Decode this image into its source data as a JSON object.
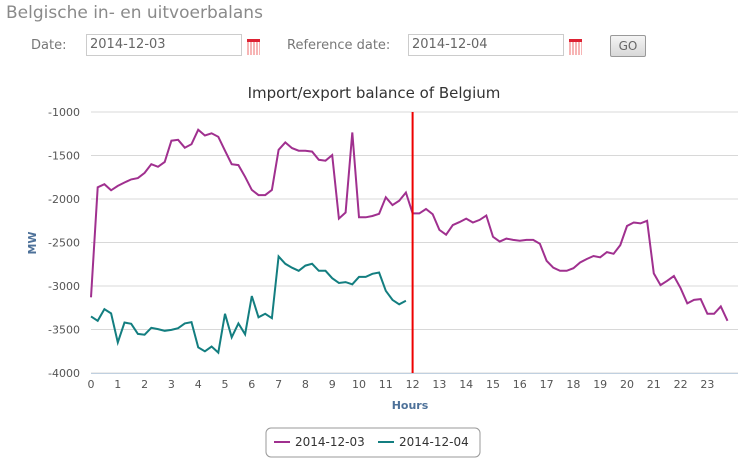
{
  "header": {
    "title": "Belgische in- en uitvoerbalans",
    "date_label": "Date:",
    "date_value": "2014-12-03",
    "ref_label": "Reference date:",
    "ref_value": "2014-12-04",
    "go_label": "GO"
  },
  "chart_data": {
    "type": "line",
    "title": "Import/export balance of Belgium",
    "xlabel": "Hours",
    "ylabel": "MW",
    "ylim": [
      -4000,
      -1000
    ],
    "yticks": [
      -1000,
      -1500,
      -2000,
      -2500,
      -3000,
      -3500,
      -4000
    ],
    "xticks": [
      0,
      1,
      2,
      3,
      4,
      5,
      6,
      7,
      8,
      9,
      10,
      11,
      12,
      13,
      14,
      15,
      16,
      17,
      18,
      19,
      20,
      21,
      22,
      23
    ],
    "x_step_hours": 0.25,
    "marker_hour": 12,
    "marker_color": "#ee0000",
    "legend_position": "bottom-center",
    "series": [
      {
        "name": "2014-12-03",
        "color": "#a0308f",
        "values": [
          -3130,
          -1865,
          -1830,
          -1900,
          -1850,
          -1810,
          -1775,
          -1760,
          -1700,
          -1600,
          -1630,
          -1575,
          -1330,
          -1320,
          -1410,
          -1370,
          -1205,
          -1270,
          -1245,
          -1285,
          -1445,
          -1600,
          -1610,
          -1745,
          -1895,
          -1955,
          -1955,
          -1895,
          -1435,
          -1350,
          -1415,
          -1445,
          -1445,
          -1455,
          -1550,
          -1560,
          -1495,
          -2225,
          -2155,
          -1235,
          -2210,
          -2210,
          -2195,
          -2170,
          -1980,
          -2070,
          -2020,
          -1925,
          -2165,
          -2165,
          -2115,
          -2175,
          -2355,
          -2410,
          -2300,
          -2265,
          -2225,
          -2270,
          -2240,
          -2190,
          -2435,
          -2490,
          -2455,
          -2470,
          -2480,
          -2470,
          -2470,
          -2515,
          -2710,
          -2790,
          -2825,
          -2825,
          -2795,
          -2730,
          -2690,
          -2655,
          -2670,
          -2610,
          -2630,
          -2530,
          -2310,
          -2270,
          -2280,
          -2250,
          -2855,
          -2990,
          -2940,
          -2885,
          -3025,
          -3200,
          -3160,
          -3150,
          -3320,
          -3320,
          -3235,
          -3400
        ]
      },
      {
        "name": "2014-12-04",
        "color": "#137e80",
        "values": [
          -3350,
          -3400,
          -3265,
          -3315,
          -3650,
          -3420,
          -3435,
          -3550,
          -3560,
          -3480,
          -3495,
          -3515,
          -3505,
          -3485,
          -3430,
          -3415,
          -3705,
          -3750,
          -3695,
          -3765,
          -3320,
          -3590,
          -3430,
          -3555,
          -3115,
          -3360,
          -3320,
          -3370,
          -2660,
          -2745,
          -2790,
          -2825,
          -2765,
          -2745,
          -2825,
          -2825,
          -2910,
          -2965,
          -2955,
          -2980,
          -2895,
          -2895,
          -2860,
          -2845,
          -3055,
          -3160,
          -3210,
          -3170
        ]
      }
    ]
  }
}
